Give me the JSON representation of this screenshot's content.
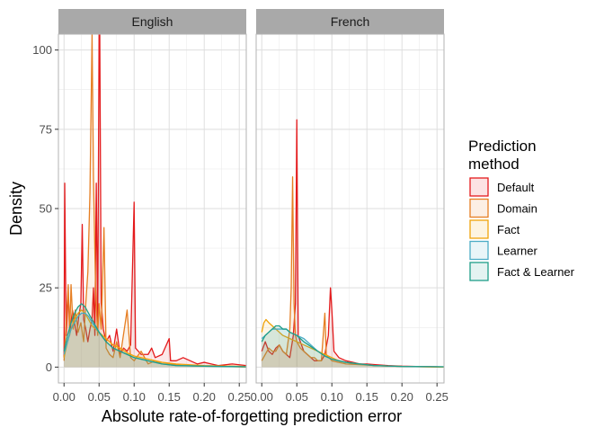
{
  "chart_data": {
    "type": "area",
    "facets": [
      "English",
      "French"
    ],
    "xlabel": "Absolute rate-of-forgetting prediction error",
    "ylabel": "Density",
    "xlim": [
      -0.008,
      0.26
    ],
    "ylim": [
      -5,
      105
    ],
    "x_ticks": [
      0.0,
      0.05,
      0.1,
      0.15,
      0.2,
      0.25
    ],
    "x_tick_labels": [
      "0.00",
      "0.05",
      "0.10",
      "0.15",
      "0.20",
      "0.25"
    ],
    "y_ticks": [
      0,
      25,
      50,
      75,
      100
    ],
    "y_tick_labels": [
      "0",
      "25",
      "50",
      "75",
      "100"
    ],
    "grid": true,
    "legend": {
      "title": "Prediction\nmethod",
      "placement": "right",
      "entries": [
        "Default",
        "Domain",
        "Fact",
        "Learner",
        "Fact & Learner"
      ]
    },
    "series": [
      {
        "name": "Default",
        "color": "#e41a1c",
        "panels": {
          "English": [
            [
              0,
              3
            ],
            [
              0.001,
              58
            ],
            [
              0.003,
              10
            ],
            [
              0.006,
              22
            ],
            [
              0.009,
              12
            ],
            [
              0.012,
              18
            ],
            [
              0.015,
              14
            ],
            [
              0.018,
              10
            ],
            [
              0.021,
              16
            ],
            [
              0.024,
              20
            ],
            [
              0.026,
              45
            ],
            [
              0.028,
              15
            ],
            [
              0.031,
              12
            ],
            [
              0.034,
              8
            ],
            [
              0.037,
              12
            ],
            [
              0.04,
              15
            ],
            [
              0.042,
              25
            ],
            [
              0.044,
              10
            ],
            [
              0.046,
              58
            ],
            [
              0.048,
              12
            ],
            [
              0.05,
              105
            ],
            [
              0.051,
              105
            ],
            [
              0.053,
              20
            ],
            [
              0.056,
              12
            ],
            [
              0.06,
              8
            ],
            [
              0.065,
              10
            ],
            [
              0.07,
              5
            ],
            [
              0.075,
              12
            ],
            [
              0.08,
              4
            ],
            [
              0.085,
              6
            ],
            [
              0.09,
              5
            ],
            [
              0.095,
              7
            ],
            [
              0.1,
              52
            ],
            [
              0.102,
              6
            ],
            [
              0.11,
              4
            ],
            [
              0.12,
              4
            ],
            [
              0.125,
              6
            ],
            [
              0.13,
              3
            ],
            [
              0.14,
              4
            ],
            [
              0.15,
              9
            ],
            [
              0.152,
              2
            ],
            [
              0.16,
              2
            ],
            [
              0.17,
              3
            ],
            [
              0.18,
              2
            ],
            [
              0.19,
              1
            ],
            [
              0.2,
              1.5
            ],
            [
              0.21,
              1
            ],
            [
              0.22,
              0.5
            ],
            [
              0.24,
              1
            ],
            [
              0.26,
              0.5
            ]
          ],
          "French": [
            [
              0,
              5
            ],
            [
              0.005,
              8
            ],
            [
              0.01,
              5
            ],
            [
              0.015,
              4
            ],
            [
              0.02,
              6
            ],
            [
              0.025,
              7
            ],
            [
              0.03,
              5
            ],
            [
              0.035,
              4
            ],
            [
              0.04,
              3
            ],
            [
              0.045,
              10
            ],
            [
              0.048,
              20
            ],
            [
              0.05,
              78
            ],
            [
              0.052,
              10
            ],
            [
              0.055,
              8
            ],
            [
              0.06,
              5
            ],
            [
              0.065,
              4
            ],
            [
              0.07,
              3
            ],
            [
              0.075,
              2
            ],
            [
              0.08,
              2
            ],
            [
              0.085,
              2
            ],
            [
              0.09,
              4
            ],
            [
              0.095,
              10
            ],
            [
              0.098,
              25
            ],
            [
              0.1,
              18
            ],
            [
              0.103,
              5
            ],
            [
              0.11,
              3
            ],
            [
              0.12,
              2
            ],
            [
              0.13,
              1.5
            ],
            [
              0.14,
              1
            ],
            [
              0.15,
              1
            ],
            [
              0.16,
              0.8
            ],
            [
              0.18,
              0.5
            ],
            [
              0.2,
              0.3
            ],
            [
              0.22,
              0.2
            ],
            [
              0.25,
              0.1
            ],
            [
              0.26,
              0
            ]
          ]
        }
      },
      {
        "name": "Domain",
        "color": "#e67e22",
        "panels": {
          "English": [
            [
              0,
              2
            ],
            [
              0.003,
              14
            ],
            [
              0.006,
              26
            ],
            [
              0.008,
              10
            ],
            [
              0.01,
              26
            ],
            [
              0.013,
              12
            ],
            [
              0.016,
              18
            ],
            [
              0.02,
              11
            ],
            [
              0.024,
              14
            ],
            [
              0.028,
              8
            ],
            [
              0.031,
              20
            ],
            [
              0.034,
              30
            ],
            [
              0.037,
              55
            ],
            [
              0.04,
              105
            ],
            [
              0.042,
              60
            ],
            [
              0.045,
              25
            ],
            [
              0.048,
              10
            ],
            [
              0.05,
              20
            ],
            [
              0.053,
              12
            ],
            [
              0.057,
              44
            ],
            [
              0.06,
              6
            ],
            [
              0.065,
              4
            ],
            [
              0.07,
              3
            ],
            [
              0.075,
              8
            ],
            [
              0.08,
              3
            ],
            [
              0.09,
              18
            ],
            [
              0.095,
              3
            ],
            [
              0.1,
              2
            ],
            [
              0.11,
              5
            ],
            [
              0.12,
              1
            ],
            [
              0.13,
              2
            ],
            [
              0.14,
              1
            ],
            [
              0.15,
              1
            ],
            [
              0.17,
              0.5
            ],
            [
              0.2,
              0.3
            ],
            [
              0.23,
              0.2
            ],
            [
              0.26,
              0
            ]
          ],
          "French": [
            [
              0,
              2
            ],
            [
              0.005,
              4
            ],
            [
              0.01,
              6
            ],
            [
              0.015,
              5
            ],
            [
              0.02,
              5
            ],
            [
              0.025,
              7
            ],
            [
              0.03,
              5
            ],
            [
              0.035,
              4
            ],
            [
              0.04,
              12
            ],
            [
              0.042,
              25
            ],
            [
              0.044,
              60
            ],
            [
              0.046,
              20
            ],
            [
              0.048,
              10
            ],
            [
              0.05,
              8
            ],
            [
              0.055,
              6
            ],
            [
              0.06,
              5
            ],
            [
              0.065,
              4
            ],
            [
              0.07,
              3
            ],
            [
              0.075,
              3
            ],
            [
              0.08,
              2
            ],
            [
              0.085,
              2
            ],
            [
              0.09,
              17
            ],
            [
              0.092,
              4
            ],
            [
              0.1,
              2
            ],
            [
              0.11,
              1.5
            ],
            [
              0.12,
              1
            ],
            [
              0.14,
              0.8
            ],
            [
              0.16,
              0.5
            ],
            [
              0.2,
              0.2
            ],
            [
              0.26,
              0
            ]
          ]
        }
      },
      {
        "name": "Fact",
        "color": "#f0a30a",
        "panels": {
          "English": [
            [
              0,
              3
            ],
            [
              0.005,
              8
            ],
            [
              0.01,
              12
            ],
            [
              0.015,
              15
            ],
            [
              0.02,
              17
            ],
            [
              0.025,
              18
            ],
            [
              0.03,
              17
            ],
            [
              0.035,
              15
            ],
            [
              0.04,
              13
            ],
            [
              0.05,
              11
            ],
            [
              0.06,
              9
            ],
            [
              0.07,
              7
            ],
            [
              0.08,
              6
            ],
            [
              0.09,
              4.5
            ],
            [
              0.1,
              3.5
            ],
            [
              0.12,
              2.5
            ],
            [
              0.14,
              1.5
            ],
            [
              0.16,
              1
            ],
            [
              0.2,
              0.5
            ],
            [
              0.26,
              0.2
            ]
          ],
          "French": [
            [
              0,
              11
            ],
            [
              0.003,
              14
            ],
            [
              0.006,
              15
            ],
            [
              0.01,
              14
            ],
            [
              0.015,
              13
            ],
            [
              0.02,
              12
            ],
            [
              0.025,
              11
            ],
            [
              0.03,
              10
            ],
            [
              0.04,
              9
            ],
            [
              0.05,
              8
            ],
            [
              0.06,
              7
            ],
            [
              0.07,
              6
            ],
            [
              0.08,
              5
            ],
            [
              0.09,
              4
            ],
            [
              0.1,
              3
            ],
            [
              0.11,
              2
            ],
            [
              0.12,
              1.5
            ],
            [
              0.14,
              1
            ],
            [
              0.16,
              0.5
            ],
            [
              0.2,
              0.2
            ],
            [
              0.26,
              0
            ]
          ]
        }
      },
      {
        "name": "Learner",
        "color": "#4bacc6",
        "panels": {
          "English": [
            [
              0,
              4
            ],
            [
              0.005,
              8
            ],
            [
              0.01,
              12
            ],
            [
              0.015,
              14
            ],
            [
              0.02,
              16
            ],
            [
              0.025,
              17
            ],
            [
              0.03,
              17
            ],
            [
              0.035,
              16
            ],
            [
              0.04,
              14
            ],
            [
              0.05,
              11
            ],
            [
              0.06,
              8
            ],
            [
              0.07,
              6
            ],
            [
              0.08,
              5
            ],
            [
              0.09,
              4
            ],
            [
              0.1,
              3
            ],
            [
              0.12,
              2
            ],
            [
              0.14,
              1
            ],
            [
              0.16,
              0.5
            ],
            [
              0.2,
              0.3
            ],
            [
              0.26,
              0.1
            ]
          ],
          "French": [
            [
              0,
              9
            ],
            [
              0.005,
              10
            ],
            [
              0.01,
              11
            ],
            [
              0.015,
              12
            ],
            [
              0.02,
              12
            ],
            [
              0.025,
              12
            ],
            [
              0.03,
              12
            ],
            [
              0.035,
              12
            ],
            [
              0.04,
              11
            ],
            [
              0.05,
              10
            ],
            [
              0.06,
              9
            ],
            [
              0.07,
              7
            ],
            [
              0.08,
              5
            ],
            [
              0.09,
              3.5
            ],
            [
              0.1,
              2.5
            ],
            [
              0.12,
              1.5
            ],
            [
              0.14,
              1
            ],
            [
              0.16,
              0.5
            ],
            [
              0.2,
              0.2
            ],
            [
              0.26,
              0.1
            ]
          ]
        }
      },
      {
        "name": "Fact & Learner",
        "color": "#1f9e89",
        "panels": {
          "English": [
            [
              0,
              5
            ],
            [
              0.005,
              10
            ],
            [
              0.01,
              14
            ],
            [
              0.015,
              17
            ],
            [
              0.02,
              19
            ],
            [
              0.025,
              20
            ],
            [
              0.03,
              19
            ],
            [
              0.035,
              17
            ],
            [
              0.04,
              15
            ],
            [
              0.05,
              11
            ],
            [
              0.06,
              8
            ],
            [
              0.07,
              6
            ],
            [
              0.08,
              5
            ],
            [
              0.09,
              4
            ],
            [
              0.1,
              3
            ],
            [
              0.12,
              2
            ],
            [
              0.14,
              1
            ],
            [
              0.16,
              0.5
            ],
            [
              0.2,
              0.3
            ],
            [
              0.26,
              0.1
            ]
          ],
          "French": [
            [
              0,
              8
            ],
            [
              0.005,
              10
            ],
            [
              0.01,
              11
            ],
            [
              0.015,
              12
            ],
            [
              0.02,
              13
            ],
            [
              0.025,
              13
            ],
            [
              0.03,
              12
            ],
            [
              0.035,
              12
            ],
            [
              0.04,
              11
            ],
            [
              0.05,
              10
            ],
            [
              0.06,
              8
            ],
            [
              0.07,
              6.5
            ],
            [
              0.08,
              5
            ],
            [
              0.09,
              3.5
            ],
            [
              0.1,
              2.5
            ],
            [
              0.12,
              1.5
            ],
            [
              0.14,
              1
            ],
            [
              0.16,
              0.5
            ],
            [
              0.2,
              0.2
            ],
            [
              0.26,
              0.1
            ]
          ]
        }
      }
    ]
  }
}
